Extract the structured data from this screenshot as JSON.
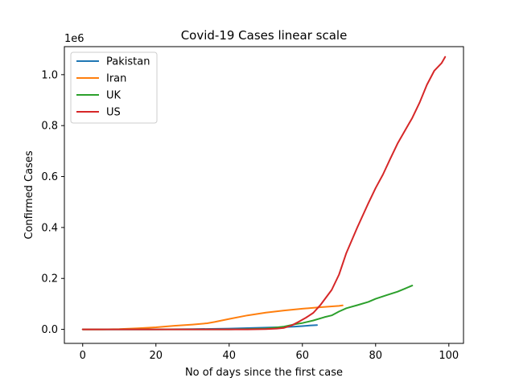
{
  "chart_data": {
    "type": "line",
    "title": "Covid-19 Cases linear scale",
    "xlabel": "No of days since the first case",
    "ylabel": "Confirmed Cases",
    "y_offset_label": "1e6",
    "xlim": [
      -5,
      104
    ],
    "ylim": [
      -0.055,
      1.11
    ],
    "x_ticks": [
      0,
      20,
      40,
      60,
      80,
      100
    ],
    "x_tick_labels": [
      "0",
      "20",
      "40",
      "60",
      "80",
      "100"
    ],
    "y_ticks": [
      0.0,
      0.2,
      0.4,
      0.6,
      0.8,
      1.0
    ],
    "y_tick_labels": [
      "0.0",
      "0.2",
      "0.4",
      "0.6",
      "0.8",
      "1.0"
    ],
    "grid": false,
    "legend_position": "top-left",
    "series": [
      {
        "name": "Pakistan",
        "color": "#1f77b4",
        "x": [
          0,
          10,
          20,
          30,
          40,
          45,
          50,
          55,
          58,
          60,
          62,
          64
        ],
        "y": [
          0.0,
          0.0,
          0.0,
          0.001,
          0.003,
          0.005,
          0.007,
          0.009,
          0.011,
          0.013,
          0.015,
          0.017
        ]
      },
      {
        "name": "Iran",
        "color": "#ff7f0e",
        "x": [
          0,
          5,
          10,
          15,
          20,
          25,
          30,
          34,
          36,
          40,
          45,
          50,
          55,
          60,
          65,
          70,
          71
        ],
        "y": [
          0.0,
          0.0,
          0.001,
          0.004,
          0.008,
          0.014,
          0.019,
          0.024,
          0.029,
          0.041,
          0.055,
          0.066,
          0.074,
          0.081,
          0.087,
          0.092,
          0.094
        ]
      },
      {
        "name": "UK",
        "color": "#2ca02c",
        "x": [
          0,
          10,
          20,
          30,
          40,
          45,
          50,
          52,
          55,
          58,
          60,
          63,
          66,
          68,
          70,
          72,
          75,
          78,
          80,
          83,
          86,
          88,
          90
        ],
        "y": [
          0.0,
          0.0,
          0.0,
          0.0,
          0.0,
          0.001,
          0.003,
          0.006,
          0.011,
          0.02,
          0.025,
          0.035,
          0.048,
          0.055,
          0.07,
          0.083,
          0.095,
          0.108,
          0.12,
          0.134,
          0.148,
          0.16,
          0.172
        ]
      },
      {
        "name": "US",
        "color": "#d62728",
        "x": [
          0,
          10,
          20,
          30,
          40,
          45,
          50,
          53,
          55,
          57,
          59,
          61,
          63,
          65,
          68,
          70,
          72,
          75,
          78,
          80,
          82,
          84,
          86,
          88,
          90,
          92,
          94,
          96,
          98,
          99
        ],
        "y": [
          0.0,
          0.0,
          0.0,
          0.0,
          0.0,
          0.0,
          0.001,
          0.003,
          0.006,
          0.015,
          0.03,
          0.046,
          0.065,
          0.097,
          0.155,
          0.215,
          0.3,
          0.4,
          0.495,
          0.555,
          0.608,
          0.67,
          0.73,
          0.78,
          0.83,
          0.89,
          0.96,
          1.015,
          1.045,
          1.07
        ]
      }
    ]
  }
}
